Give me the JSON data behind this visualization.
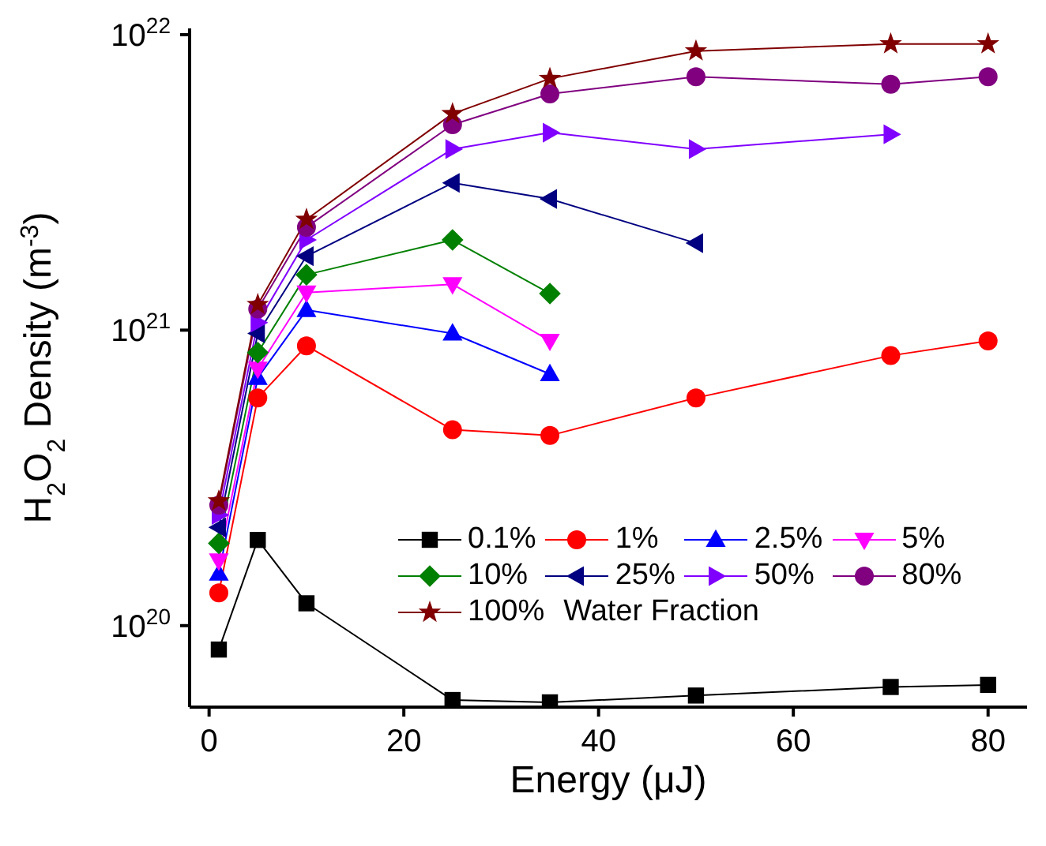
{
  "chart_data": {
    "type": "line",
    "xlabel": "Energy (μJ)",
    "ylabel": "H$_{2}$O$_{2}$ Density (m$^{-3}$)",
    "legend_title": "Water Fraction",
    "log": "y",
    "grid": false,
    "legend": "bottom right",
    "line_style": "solid",
    "xlim": [
      -2,
      84
    ],
    "xticks": [
      0,
      20,
      40,
      60,
      80
    ],
    "ylim": [
      5.3e+19,
      1.05e+22
    ],
    "yticks": [
      {
        "value": 1e+20,
        "label": "10$^{20}$"
      },
      {
        "value": 1e+21,
        "label": "10$^{21}$"
      },
      {
        "value": 1e+22,
        "label": "10$^{22}$"
      }
    ],
    "series": [
      {
        "name": "0.1%",
        "color": "#000000",
        "marker": "square",
        "x": [
          1,
          5,
          10,
          25,
          35,
          50,
          70,
          80
        ],
        "values": [
          8.3e+19,
          1.95e+20,
          1.19e+20,
          5.6e+19,
          5.5e+19,
          5.8e+19,
          6.2e+19,
          6.3e+19
        ]
      },
      {
        "name": "1%",
        "color": "#ff0000",
        "marker": "circle",
        "x": [
          1,
          5,
          10,
          25,
          35,
          50,
          70,
          80
        ],
        "values": [
          1.29e+20,
          5.9e+20,
          8.85e+20,
          4.6e+20,
          4.4e+20,
          5.9e+20,
          8.2e+20,
          9.2e+20
        ]
      },
      {
        "name": "2.5%",
        "color": "#0000ff",
        "marker": "triangle",
        "x": [
          1,
          5,
          10,
          25,
          35
        ],
        "values": [
          1.5e+20,
          6.9e+20,
          1.17e+21,
          9.75e+20,
          7.1e+20
        ]
      },
      {
        "name": "5%",
        "color": "#ff00ff",
        "marker": "triangle-down",
        "x": [
          1,
          5,
          10,
          25,
          35
        ],
        "values": [
          1.66e+20,
          7.4e+20,
          1.34e+21,
          1.43e+21,
          9.2e+20
        ]
      },
      {
        "name": "10%",
        "color": "#008000",
        "marker": "diamond",
        "x": [
          1,
          5,
          10,
          25,
          35
        ],
        "values": [
          1.9e+20,
          8.4e+20,
          1.54e+21,
          2.02e+21,
          1.33e+21
        ]
      },
      {
        "name": "25%",
        "color": "#000080",
        "marker": "triangle-left",
        "x": [
          1,
          5,
          10,
          25,
          35,
          50
        ],
        "values": [
          2.15e+20,
          9.75e+20,
          1.78e+21,
          3.15e+21,
          2.78e+21,
          1.97e+21
        ]
      },
      {
        "name": "50%",
        "color": "#8000ff",
        "marker": "triangle-right",
        "x": [
          1,
          5,
          10,
          25,
          35,
          50,
          70
        ],
        "values": [
          2.37e+20,
          1.06e+21,
          2.02e+21,
          4.1e+21,
          4.66e+21,
          4.1e+21,
          4.6e+21
        ]
      },
      {
        "name": "80%",
        "color": "#800080",
        "marker": "circle",
        "x": [
          1,
          5,
          10,
          25,
          35,
          50,
          70,
          80
        ],
        "values": [
          2.56e+20,
          1.18e+21,
          2.23e+21,
          4.96e+21,
          6.3e+21,
          7.2e+21,
          6.8e+21,
          7.2e+21
        ]
      },
      {
        "name": "100%",
        "color": "#800000",
        "marker": "star",
        "x": [
          1,
          5,
          10,
          25,
          35,
          50,
          70,
          80
        ],
        "values": [
          2.64e+20,
          1.22e+21,
          2.37e+21,
          5.4e+21,
          7.1e+21,
          8.8e+21,
          9.3e+21,
          9.3e+21
        ]
      }
    ]
  }
}
